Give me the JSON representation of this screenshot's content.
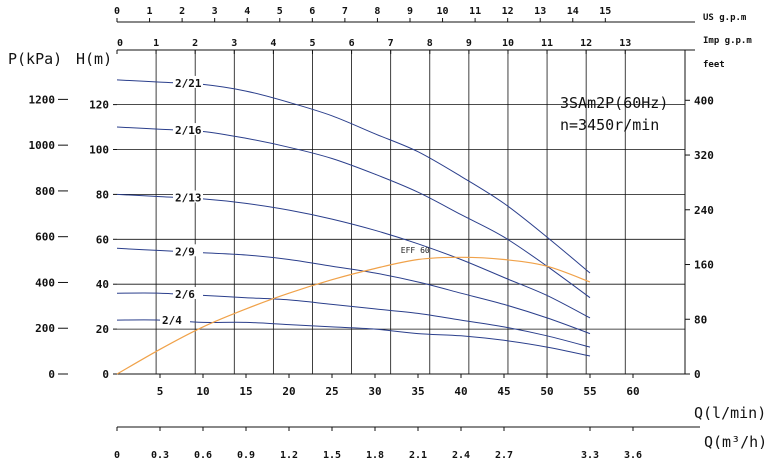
{
  "chart_data": {
    "type": "line",
    "title": "3SAm2P(60Hz)",
    "subtitle": "n=3450r/min",
    "xlabel": "Q(l/min)",
    "xlabel_m3h": "Q(m³/h)",
    "ylabel_left_pressure": "P(kPa)",
    "ylabel_left_head": "H(m)",
    "label_us_gpm": "US g.p.m",
    "label_imp_gpm": "Imp g.p.m",
    "label_feet": "feet",
    "xlim": [
      0,
      70
    ],
    "ylim_head": [
      0,
      140
    ],
    "x_ticks": [
      "5",
      "10",
      "15",
      "20",
      "25",
      "30",
      "35",
      "40",
      "45",
      "50",
      "55",
      "60"
    ],
    "x_tick_values": [
      5,
      10,
      15,
      20,
      25,
      30,
      35,
      40,
      45,
      50,
      55,
      60
    ],
    "head_ticks": [
      "0",
      "20",
      "40",
      "60",
      "80",
      "100",
      "120"
    ],
    "head_tick_values": [
      0,
      20,
      40,
      60,
      80,
      100,
      120
    ],
    "pressure_ticks": [
      "0",
      "200",
      "400",
      "600",
      "800",
      "1000",
      "1200"
    ],
    "pressure_tick_values": [
      0,
      200,
      400,
      600,
      800,
      1000,
      1200
    ],
    "feet_ticks": [
      "0",
      "80",
      "160",
      "240",
      "320",
      "400"
    ],
    "feet_tick_values": [
      0,
      80,
      160,
      240,
      320,
      400
    ],
    "m3h_ticks": [
      "0",
      "0.3",
      "0.6",
      "0.9",
      "1.2",
      "1.5",
      "1.8",
      "2.1",
      "2.4",
      "2.7",
      "3.3",
      "3.6"
    ],
    "m3h_tick_values": [
      0,
      0.3,
      0.6,
      0.9,
      1.2,
      1.5,
      1.8,
      2.1,
      2.4,
      2.7,
      3.3,
      3.6
    ],
    "us_gpm_ticks": [
      "0",
      "1",
      "2",
      "3",
      "4",
      "5",
      "6",
      "7",
      "8",
      "9",
      "10",
      "11",
      "12",
      "13",
      "14",
      "15"
    ],
    "us_gpm_tick_values": [
      0,
      1,
      2,
      3,
      4,
      5,
      6,
      7,
      8,
      9,
      10,
      11,
      12,
      13,
      14,
      15
    ],
    "imp_gpm_ticks": [
      "0",
      "1",
      "2",
      "3",
      "4",
      "5",
      "6",
      "7",
      "8",
      "9",
      "10",
      "11",
      "12",
      "13"
    ],
    "imp_gpm_tick_values": [
      0,
      1,
      2,
      3,
      4,
      5,
      6,
      7,
      8,
      9,
      10,
      11,
      12,
      13
    ],
    "grid": true,
    "series": [
      {
        "name": "2/21",
        "x": [
          0,
          5,
          10,
          15,
          20,
          25,
          30,
          35,
          40,
          45,
          50,
          55
        ],
        "y": [
          131,
          130,
          129,
          126,
          121,
          115,
          107,
          99,
          88,
          76,
          61,
          45
        ]
      },
      {
        "name": "2/16",
        "x": [
          0,
          5,
          10,
          15,
          20,
          25,
          30,
          35,
          40,
          45,
          50,
          55
        ],
        "y": [
          110,
          109,
          108,
          105,
          101,
          96,
          89,
          81,
          71,
          61,
          48,
          34
        ]
      },
      {
        "name": "2/13",
        "x": [
          0,
          5,
          10,
          15,
          20,
          25,
          30,
          35,
          40,
          45,
          50,
          55
        ],
        "y": [
          80,
          79,
          78,
          76,
          73,
          69,
          64,
          58,
          51,
          43,
          35,
          25
        ]
      },
      {
        "name": "2/9",
        "x": [
          0,
          5,
          10,
          15,
          20,
          25,
          30,
          35,
          40,
          45,
          50,
          55
        ],
        "y": [
          56,
          55,
          54,
          53,
          51,
          48,
          45,
          41,
          36,
          31,
          25,
          18
        ]
      },
      {
        "name": "2/6",
        "x": [
          0,
          5,
          10,
          15,
          20,
          25,
          30,
          35,
          40,
          45,
          50,
          55
        ],
        "y": [
          36,
          36,
          35,
          34,
          33,
          31,
          29,
          27,
          24,
          21,
          17,
          12
        ]
      },
      {
        "name": "2/4",
        "x": [
          0,
          5,
          10,
          15,
          20,
          25,
          30,
          35,
          40,
          45,
          50,
          55
        ],
        "y": [
          24,
          24,
          23,
          23,
          22,
          21,
          20,
          18,
          17,
          15,
          12,
          8
        ]
      }
    ],
    "efficiency": {
      "name": "EFF",
      "label_text": "EFF 60",
      "x": [
        0,
        5,
        10,
        15,
        20,
        25,
        30,
        35,
        40,
        45,
        50,
        55
      ],
      "y": [
        0,
        11,
        21,
        29,
        36,
        42,
        47,
        51,
        52,
        51,
        48,
        41
      ]
    },
    "colors": {
      "curve": "#2b3f8c",
      "efficiency": "#f0a24a",
      "axis": "#111111",
      "grid": "#111111"
    }
  }
}
